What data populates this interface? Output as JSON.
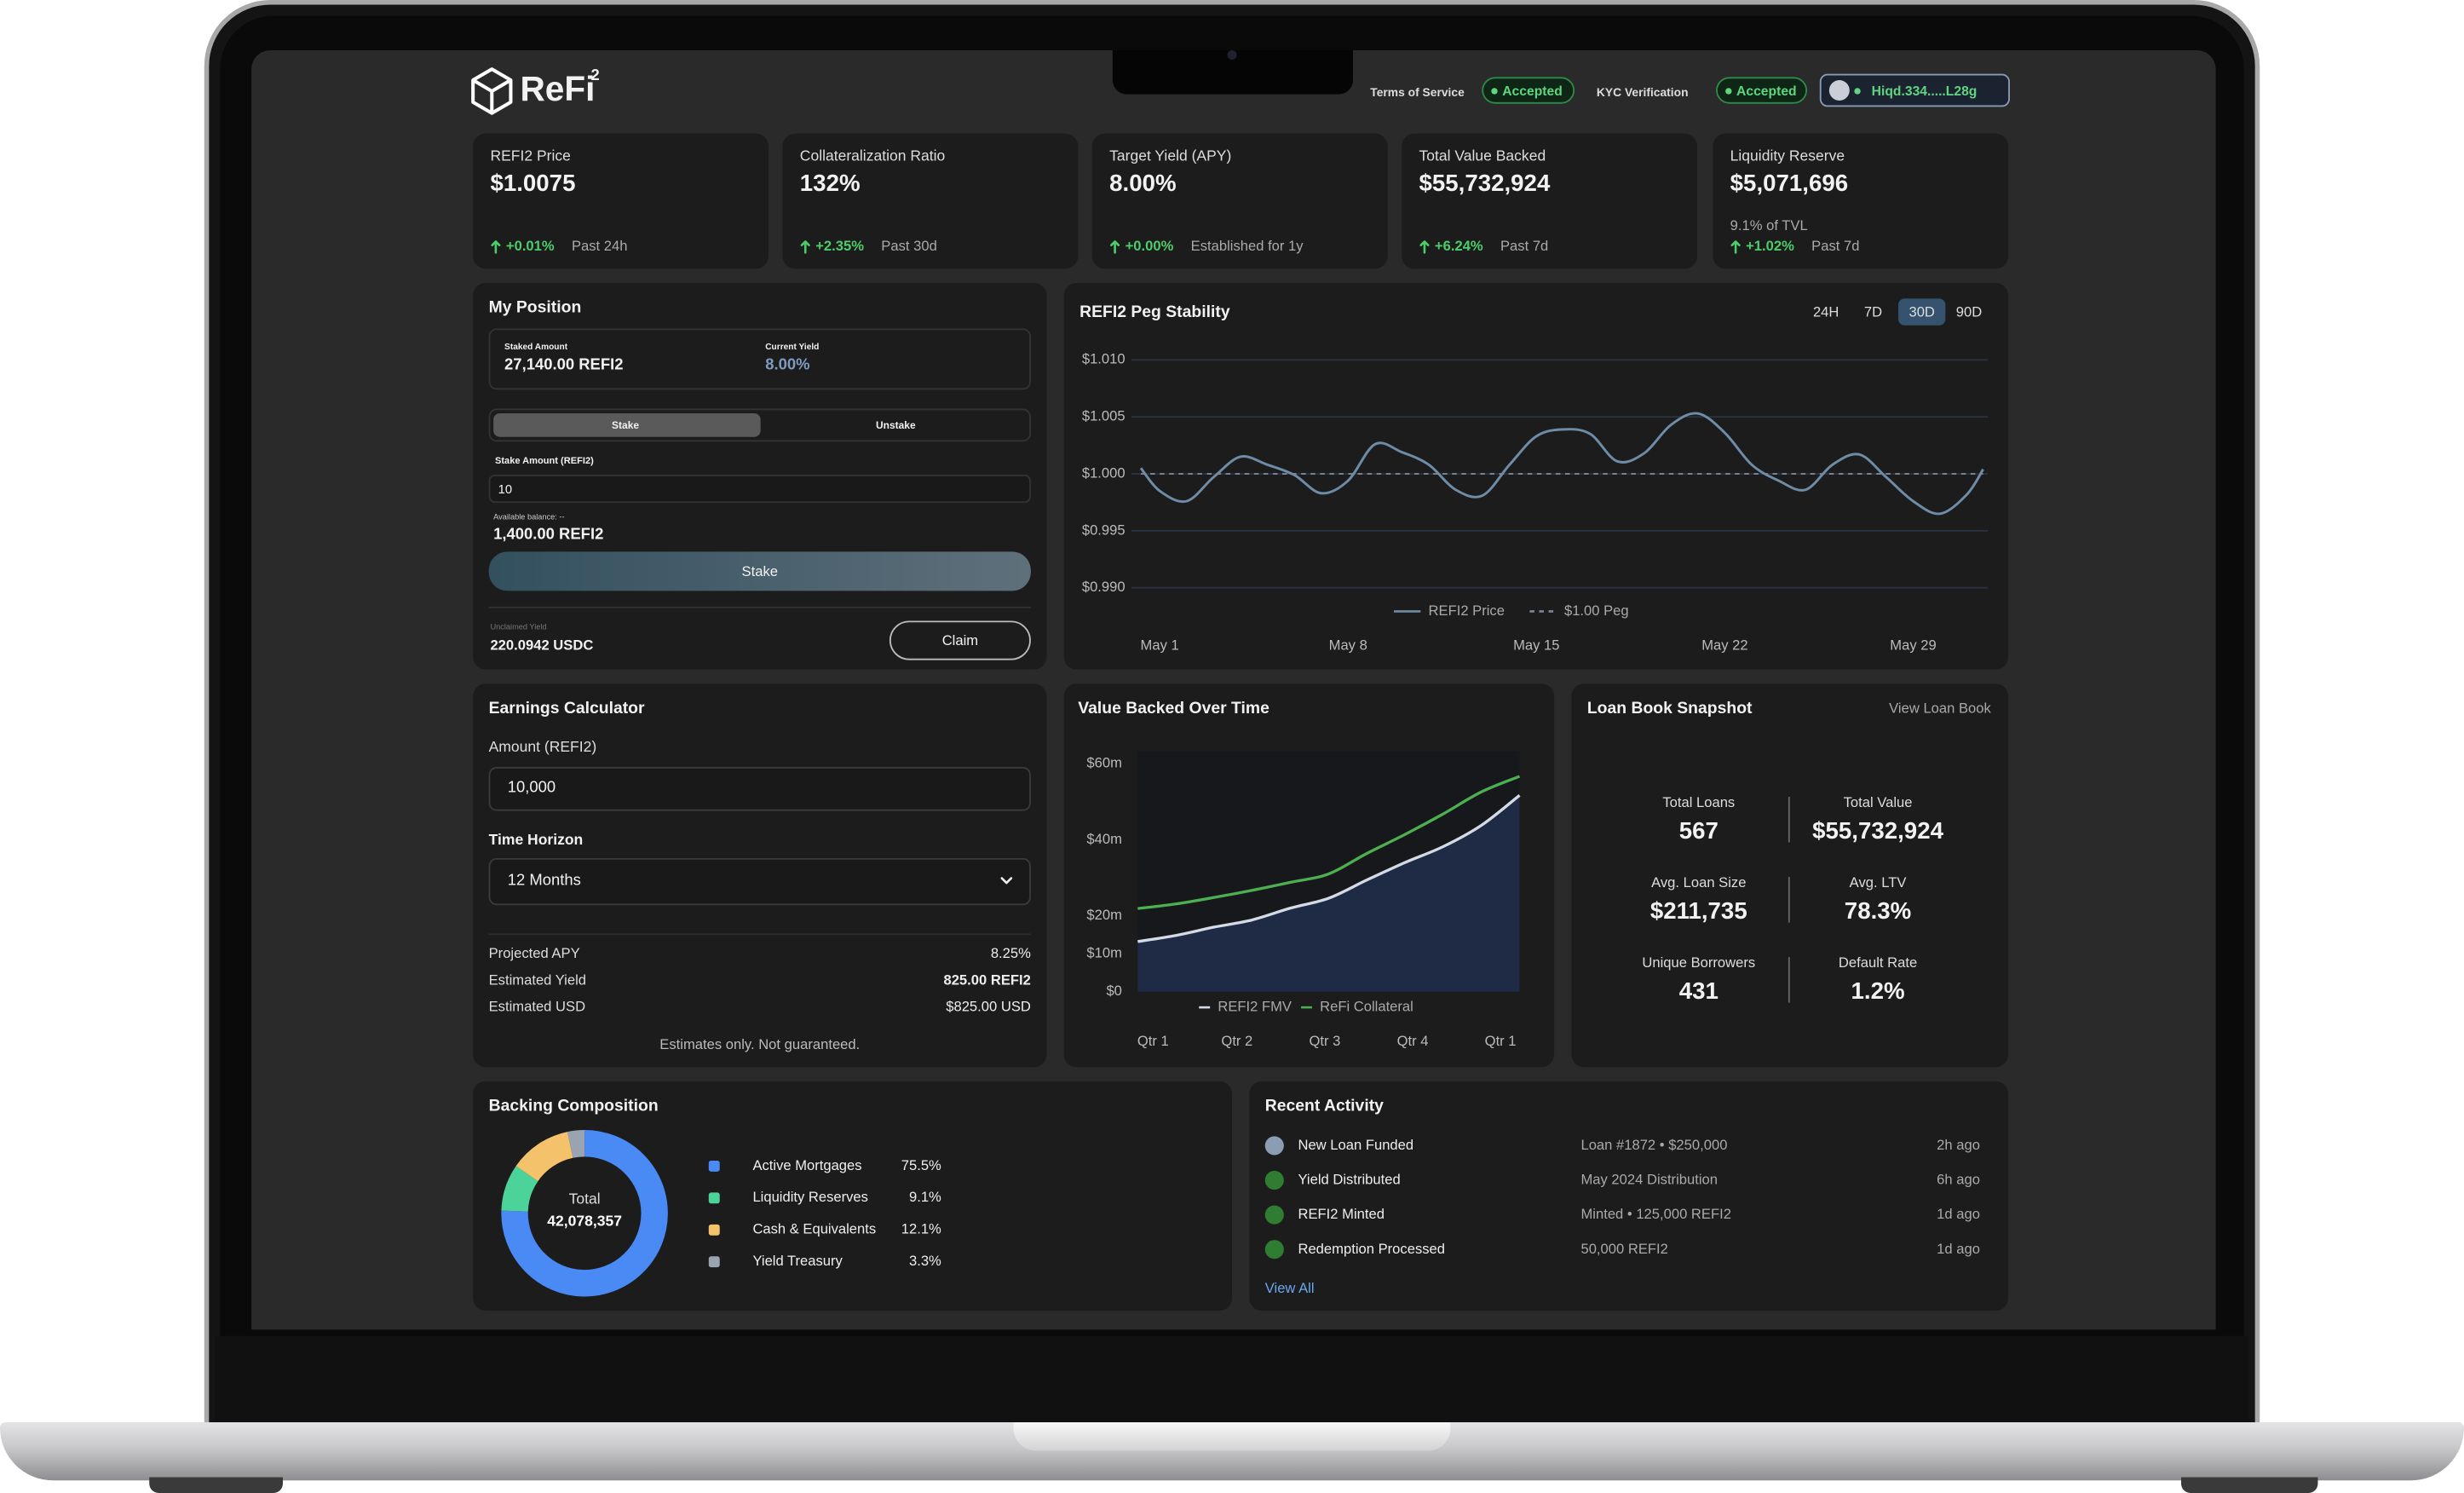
{
  "header": {
    "logo": "ReFi",
    "logo_superscript": "2",
    "terms_label": "Terms of Service",
    "terms_status": "Accepted",
    "kyc_label": "KYC Verification",
    "kyc_status": "Accepted",
    "wallet": "Hiqd.334.....L28g"
  },
  "stats": [
    {
      "label": "REFI2 Price",
      "value": "$1.0075",
      "change": "+0.01%",
      "period": "Past 24h"
    },
    {
      "label": "Collateralization Ratio",
      "value": "132%",
      "change": "+2.35%",
      "period": "Past 30d"
    },
    {
      "label": "Target Yield (APY)",
      "value": "8.00%",
      "change": "+0.00%",
      "period": "Established for 1y"
    },
    {
      "label": "Total Value Backed",
      "value": "$55,732,924",
      "change": "+6.24%",
      "period": "Past 7d"
    },
    {
      "label": "Liquidity Reserve",
      "value": "$5,071,696",
      "note": "9.1% of TVL",
      "change": "+1.02%",
      "period": "Past 7d"
    }
  ],
  "position": {
    "title": "My Position",
    "staked_label": "Staked Amount",
    "staked_value": "27,140.00 REFI2",
    "yield_label": "Current Yield",
    "yield_value": "8.00%",
    "tabs": [
      "Stake",
      "Unstake"
    ],
    "amount_label": "Stake Amount (REFI2)",
    "amount_input": "10",
    "balance_label": "Available balance: --",
    "balance_value": "1,400.00 REFI2",
    "stake_button": "Stake",
    "unclaimed_label": "Unclaimed Yield",
    "unclaimed_value": "220.0942 USDC",
    "claim_button": "Claim"
  },
  "calculator": {
    "title": "Earnings Calculator",
    "amount_label": "Amount (REFI2)",
    "amount_input": "10,000",
    "horizon_label": "Time Horizon",
    "horizon_select": "12 Months",
    "rows": [
      {
        "label": "Projected APY",
        "value": "8.25%"
      },
      {
        "label": "Estimated Yield",
        "value": "825.00 REFI2"
      },
      {
        "label": "Estimated USD",
        "value": "$825.00 USD"
      }
    ],
    "note": "Estimates only. Not guaranteed."
  },
  "loan_book": {
    "title": "Loan Book Snapshot",
    "link": "View Loan Book",
    "items": [
      {
        "label": "Total Loans",
        "value": "567"
      },
      {
        "label": "Total Value",
        "value": "$55,732,924"
      },
      {
        "label": "Avg. Loan Size",
        "value": "$211,735"
      },
      {
        "label": "Avg. LTV",
        "value": "78.3%"
      },
      {
        "label": "Unique Borrowers",
        "value": "431"
      },
      {
        "label": "Default Rate",
        "value": "1.2%"
      }
    ]
  },
  "activity": {
    "title": "Recent Activity",
    "link": "View All",
    "rows": [
      {
        "name": "New Loan Funded",
        "detail": "Loan #1872 • $250,000",
        "time": "2h ago",
        "icon_color": "#8b9db3"
      },
      {
        "name": "Yield Distributed",
        "detail": "May 2024 Distribution",
        "time": "6h ago",
        "icon_color": "#2e7d32"
      },
      {
        "name": "REFI2 Minted",
        "detail": "Minted • 125,000 REFI2",
        "time": "1d ago",
        "icon_color": "#2e7d32"
      },
      {
        "name": "Redemption Processed",
        "detail": "50,000 REFI2",
        "time": "1d ago",
        "icon_color": "#2e7d32"
      }
    ]
  },
  "chart_data": [
    {
      "type": "line",
      "title": "REFI2 Peg Stability",
      "ranges": [
        "24H",
        "7D",
        "30D",
        "90D"
      ],
      "active_range": "30D",
      "x": [
        0.3,
        1,
        2,
        3,
        4,
        5,
        6,
        7,
        8,
        9,
        10,
        11,
        12,
        13,
        14,
        15,
        16,
        17,
        18,
        19,
        20,
        21,
        22,
        23,
        24,
        25,
        26,
        27,
        28,
        29,
        30,
        31,
        31.6
      ],
      "xlim": [
        0.3,
        31.6
      ],
      "xticks": [
        {
          "value": 1,
          "label": "May 1"
        },
        {
          "value": 8,
          "label": "May 8"
        },
        {
          "value": 15,
          "label": "May 15"
        },
        {
          "value": 22,
          "label": "May 22"
        },
        {
          "value": 29,
          "label": "May 29"
        }
      ],
      "ylim": [
        0.99,
        1.01
      ],
      "yticks": [
        {
          "value": 0.99,
          "label": "$0.990"
        },
        {
          "value": 0.995,
          "label": "$0.995"
        },
        {
          "value": 1.0,
          "label": "$1.000"
        },
        {
          "value": 1.005,
          "label": "$1.005"
        },
        {
          "value": 1.01,
          "label": "$1.010"
        }
      ],
      "grid": true,
      "series": [
        {
          "name": "REFI2 Price",
          "color": "#6f8ca6",
          "values": [
            1.0005,
            0.9985,
            0.9976,
            0.9997,
            1.0015,
            1.0008,
            0.9999,
            0.9983,
            0.9994,
            1.0026,
            1.0019,
            1.0008,
            0.9986,
            0.9981,
            1.0008,
            1.0033,
            1.0039,
            1.0035,
            1.0011,
            1.0018,
            1.0043,
            1.0053,
            1.0036,
            1.0008,
            0.9994,
            0.9986,
            1.0008,
            1.0017,
            0.9997,
            0.9976,
            0.9965,
            0.9982,
            1.0004
          ]
        }
      ],
      "reference_line": {
        "name": "$1.00 Peg",
        "value": 1.0,
        "color": "#7d8799"
      }
    },
    {
      "type": "area",
      "title": "Value Backed Over Time",
      "x": [
        0,
        1,
        2,
        3,
        4,
        5,
        6,
        7,
        8,
        9,
        10
      ],
      "xlim": [
        0,
        10
      ],
      "xticks": [
        {
          "value": 0.4,
          "label": "Qtr 1"
        },
        {
          "value": 2.6,
          "label": "Qtr 2"
        },
        {
          "value": 4.9,
          "label": "Qtr 3"
        },
        {
          "value": 7.2,
          "label": "Qtr 4"
        },
        {
          "value": 9.5,
          "label": "Qtr 1"
        }
      ],
      "ylim": [
        0,
        60
      ],
      "yticks": [
        {
          "value": 0,
          "label": "$0"
        },
        {
          "value": 10,
          "label": "$10m"
        },
        {
          "value": 20,
          "label": "$20m"
        },
        {
          "value": 40,
          "label": "$40m"
        },
        {
          "value": 60,
          "label": "$60m"
        }
      ],
      "grid": false,
      "series": [
        {
          "name": "REFI2 FMV",
          "color": "#d5dbe5",
          "fill": "#1f2a44",
          "values": [
            13.2,
            14.8,
            17.0,
            18.9,
            22.0,
            24.6,
            29.4,
            34.0,
            38.2,
            43.8,
            51.7
          ]
        },
        {
          "name": "ReFi Collateral",
          "color": "#4caf50",
          "values": [
            21.9,
            23.1,
            24.8,
            26.7,
            28.8,
            31.0,
            36.4,
            41.4,
            46.8,
            52.6,
            56.7
          ]
        }
      ]
    },
    {
      "type": "donut",
      "title": "Backing Composition",
      "center_label": "Total",
      "center_value": "42,078,357",
      "categories": [
        "Active Mortgages",
        "Liquidity Reserves",
        "Cash & Equivalents",
        "Yield Treasury"
      ],
      "values": [
        75.5,
        9.1,
        12.1,
        3.3
      ],
      "value_labels": [
        "75.5%",
        "9.1%",
        "12.1%",
        "3.3%"
      ],
      "colors": [
        "#4a8af4",
        "#4cd39a",
        "#f3c26b",
        "#9aa4b1"
      ]
    }
  ]
}
